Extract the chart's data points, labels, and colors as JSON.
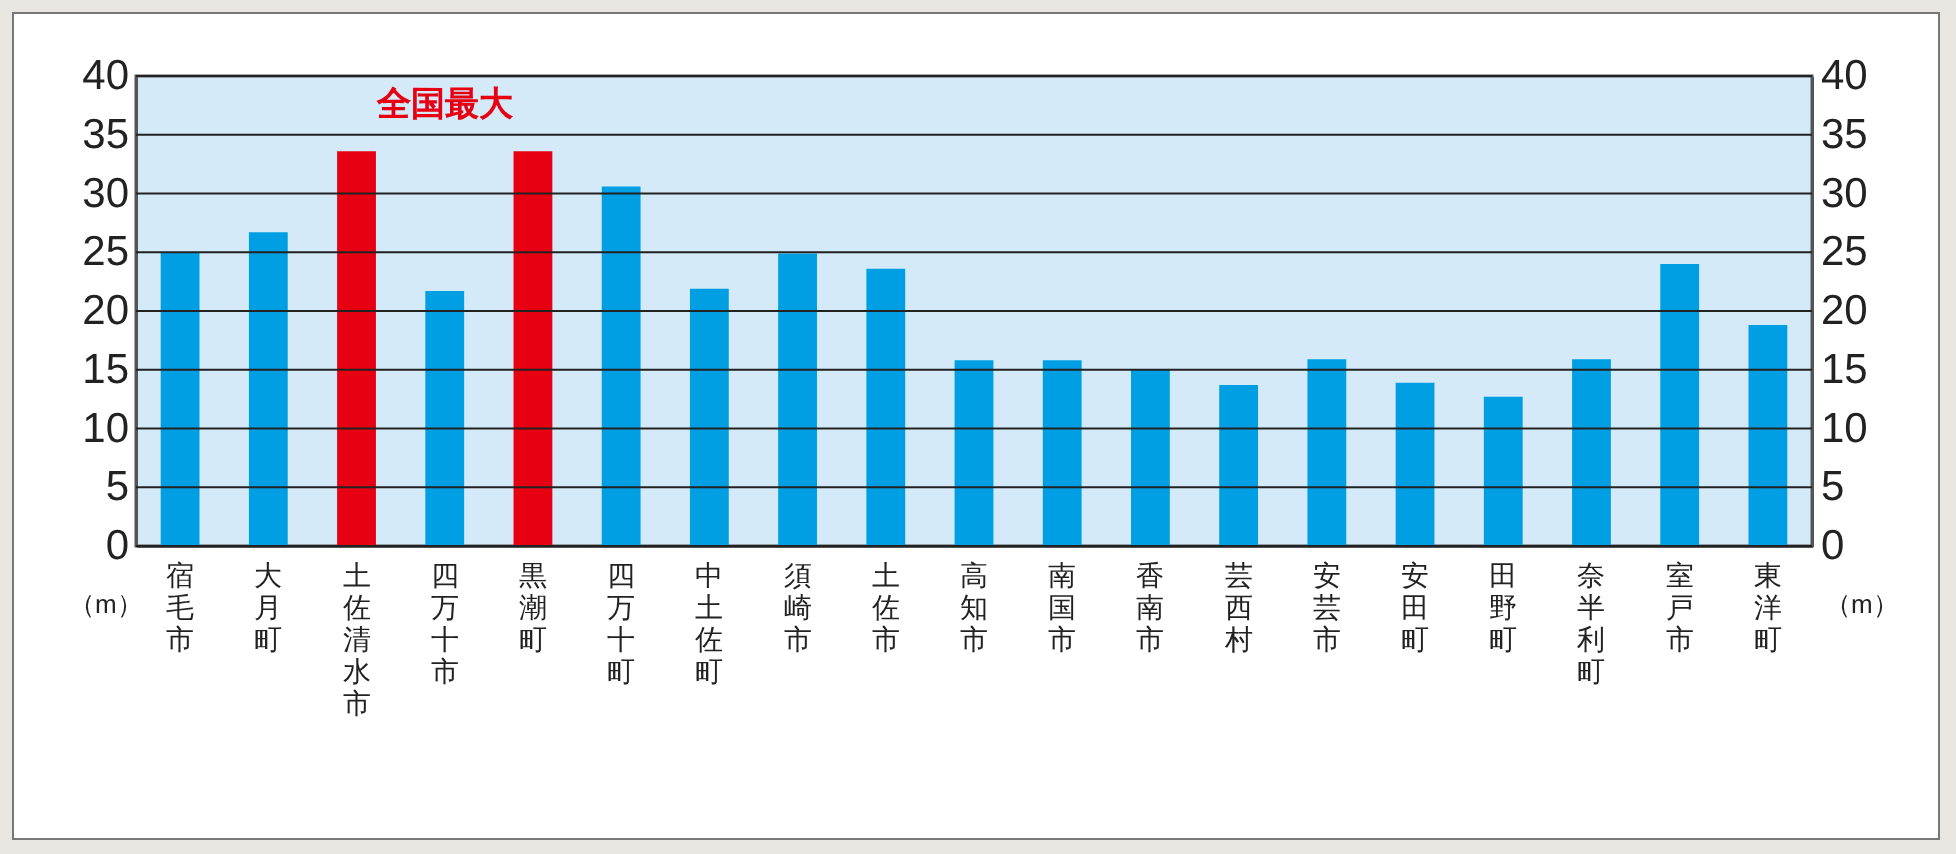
{
  "chart_data": {
    "type": "bar",
    "categories": [
      "宿毛市",
      "大月町",
      "土佐清水市",
      "四万十市",
      "黒潮町",
      "四万十町",
      "中土佐町",
      "須崎市",
      "土佐市",
      "高知市",
      "南国市",
      "香南市",
      "芸西村",
      "安芸市",
      "安田町",
      "田野町",
      "奈半利町",
      "室戸市",
      "東洋町"
    ],
    "values": [
      25,
      26.7,
      33.6,
      21.7,
      33.6,
      30.6,
      21.9,
      24.9,
      23.6,
      15.8,
      15.8,
      15,
      13.7,
      15.9,
      13.9,
      12.7,
      15.9,
      24,
      18.8
    ],
    "colors": [
      "#009fe3",
      "#009fe3",
      "#e60012",
      "#009fe3",
      "#e60012",
      "#009fe3",
      "#009fe3",
      "#009fe3",
      "#009fe3",
      "#009fe3",
      "#009fe3",
      "#009fe3",
      "#009fe3",
      "#009fe3",
      "#009fe3",
      "#009fe3",
      "#009fe3",
      "#009fe3",
      "#009fe3"
    ],
    "ylabel": "（m）",
    "y2label": "（m）",
    "ylim": [
      0,
      40
    ],
    "yticks": [
      0,
      5,
      10,
      15,
      20,
      25,
      30,
      35,
      40
    ],
    "y2lim": [
      0,
      40
    ],
    "y2ticks": [
      0,
      5,
      10,
      15,
      20,
      25,
      30,
      35,
      40
    ],
    "grid": true,
    "annotations": [
      "全国最大"
    ]
  }
}
